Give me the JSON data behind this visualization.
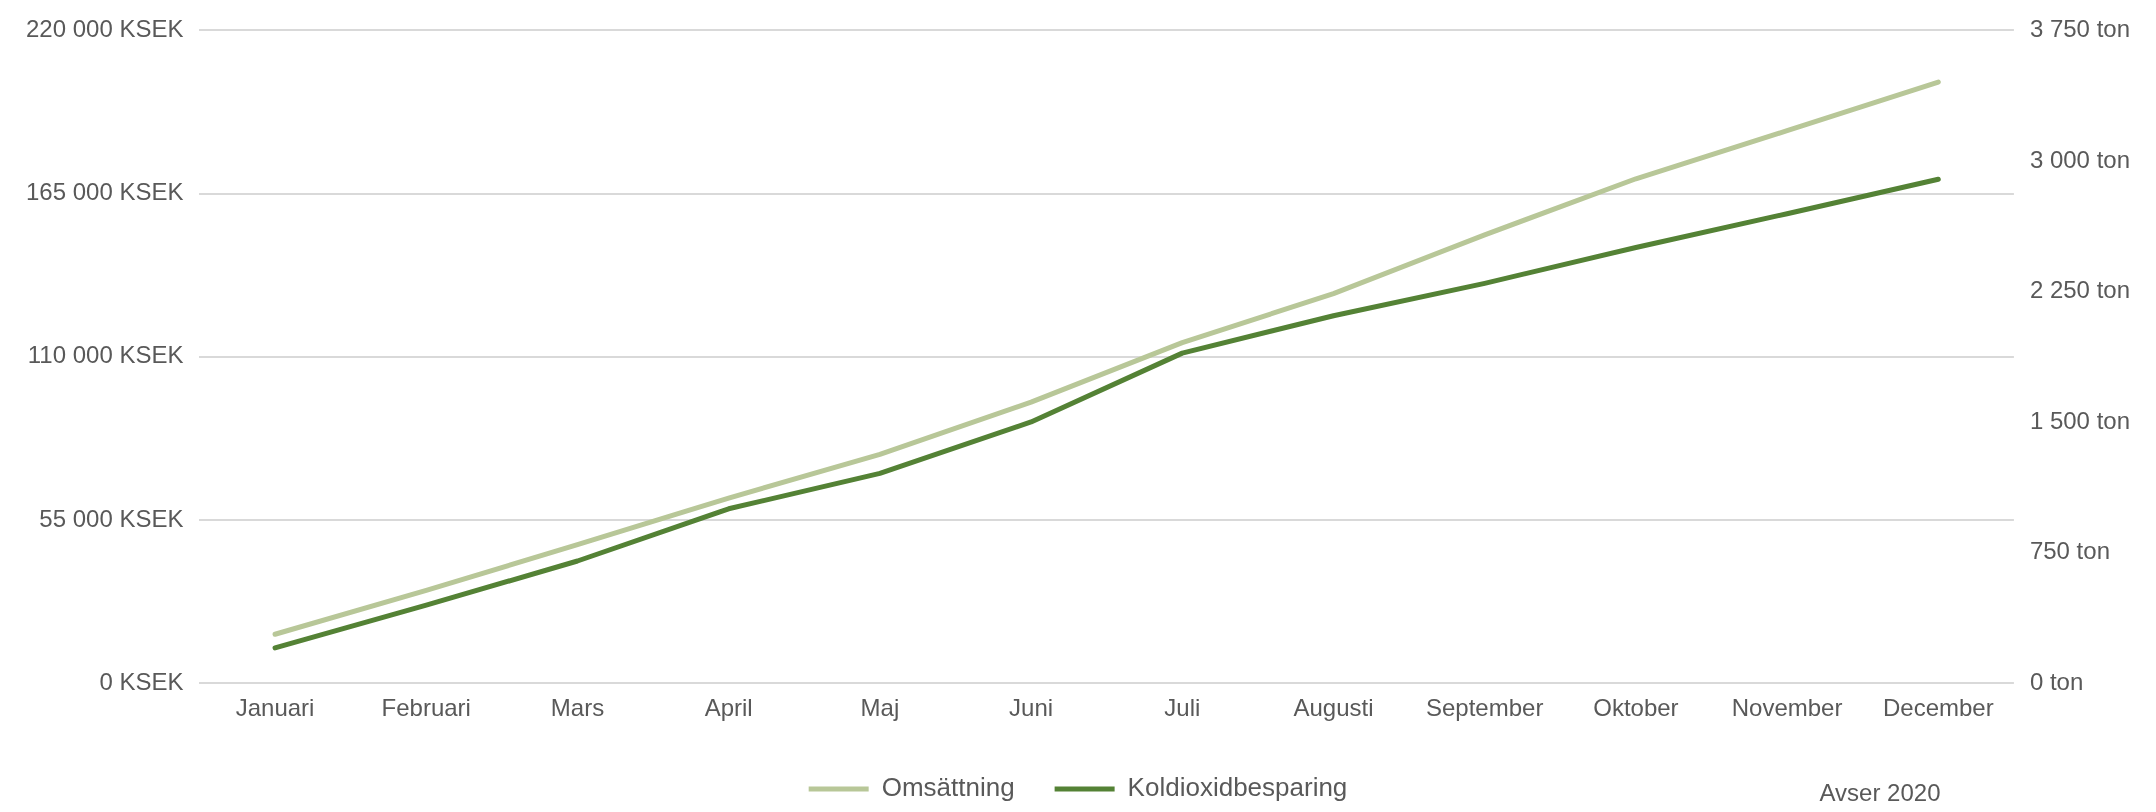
{
  "chart_data": {
    "type": "line",
    "categories": [
      "Januari",
      "Februari",
      "Mars",
      "April",
      "Maj",
      "Juni",
      "Juli",
      "Augusti",
      "September",
      "Oktober",
      "November",
      "December"
    ],
    "series": [
      {
        "name": "Omsättning",
        "color": "#b8c798",
        "values": [
          16500,
          31300,
          46700,
          62400,
          77100,
          94700,
          114800,
          131300,
          151100,
          170000,
          186200,
          202600
        ]
      },
      {
        "name": "Koldioxidbesparing",
        "color": "#548235",
        "axis": "y2",
        "values": [
          203,
          448,
          702,
          1002,
          1205,
          1501,
          1896,
          2111,
          2297,
          2503,
          2697,
          2895
        ]
      }
    ],
    "ylim": [
      0,
      220000
    ],
    "yticks": [
      {
        "value": 0,
        "label": "0 KSEK"
      },
      {
        "value": 55000,
        "label": "55 000 KSEK"
      },
      {
        "value": 110000,
        "label": "110 000 KSEK"
      },
      {
        "value": 165000,
        "label": "165 000 KSEK"
      },
      {
        "value": 220000,
        "label": "220 000 KSEK"
      }
    ],
    "y2lim": [
      0,
      3750
    ],
    "y2ticks": [
      {
        "value": 0,
        "label": "0 ton"
      },
      {
        "value": 750,
        "label": "750 ton"
      },
      {
        "value": 1500,
        "label": "1 500 ton"
      },
      {
        "value": 2250,
        "label": "2 250 ton"
      },
      {
        "value": 3000,
        "label": "3 000 ton"
      },
      {
        "value": 3750,
        "label": "3 750 ton"
      }
    ],
    "grid": "y",
    "legend": "bottom",
    "marker": "none",
    "line_style": "solid",
    "annotations": [
      "Avser 2020"
    ]
  }
}
